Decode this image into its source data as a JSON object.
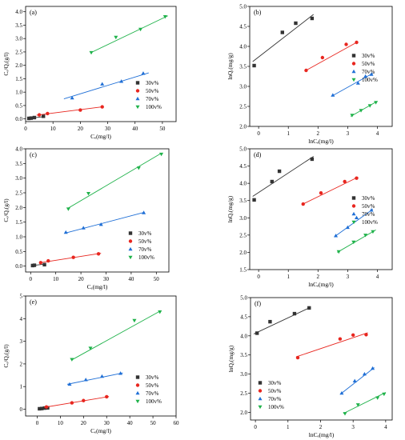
{
  "colors": {
    "s30": "#333333",
    "s50": "#e8261f",
    "s70": "#1f6fd6",
    "s100": "#1fb24a"
  },
  "legend_labels": [
    "30v%",
    "50v%",
    "70v%",
    "100v%"
  ],
  "chart_data": [
    {
      "panel": "(a)",
      "type": "scatter",
      "model": "Langmuir",
      "xlabel": "Cₑ(mg/l)",
      "ylabel": "Cₑ/Qₑ(g/l)",
      "xlim": [
        0,
        55
      ],
      "ylim": [
        -0.1,
        4.2
      ],
      "xticks": [
        0,
        10,
        20,
        30,
        40,
        50
      ],
      "yticks": [
        0.0,
        0.5,
        1.0,
        1.5,
        2.0,
        2.5,
        3.0,
        3.5,
        4.0
      ],
      "xtick_labels": [
        "0",
        "10",
        "20",
        "30",
        "40",
        "50"
      ],
      "ytick_labels": [
        "0.0",
        "0.5",
        "1.0",
        "1.5",
        "2.0",
        "2.5",
        "3.0",
        "3.5",
        "4.0"
      ],
      "legend_position": "bottom-right",
      "series": [
        {
          "name": "30v%",
          "marker": "square",
          "x": [
            1.2,
            2.0,
            3.2,
            6.5
          ],
          "y": [
            0.02,
            0.03,
            0.05,
            0.1
          ],
          "fit": [
            [
              1,
              0.02
            ],
            [
              7,
              0.09
            ]
          ]
        },
        {
          "name": "50v%",
          "marker": "circle",
          "x": [
            5,
            8,
            20,
            28
          ],
          "y": [
            0.15,
            0.2,
            0.33,
            0.45
          ],
          "fit": [
            [
              4,
              0.14
            ],
            [
              28,
              0.45
            ]
          ]
        },
        {
          "name": "70v%",
          "marker": "triangle-up",
          "x": [
            17,
            28,
            35,
            43
          ],
          "y": [
            0.78,
            1.3,
            1.4,
            1.7
          ],
          "fit": [
            [
              14,
              0.75
            ],
            [
              45,
              1.72
            ]
          ]
        },
        {
          "name": "100v%",
          "marker": "triangle-down",
          "x": [
            24,
            33,
            42,
            51
          ],
          "y": [
            2.48,
            3.05,
            3.35,
            3.82
          ],
          "fit": [
            [
              24,
              2.48
            ],
            [
              52,
              3.85
            ]
          ]
        }
      ]
    },
    {
      "panel": "(b)",
      "type": "scatter",
      "model": "Freundlich",
      "xlabel": "lnCₑ(mg/l)",
      "ylabel": "lnQₑ(mg/g)",
      "xlim": [
        -0.3,
        4.5
      ],
      "ylim": [
        2.0,
        5.0
      ],
      "xticks": [
        0,
        1,
        2,
        3,
        4
      ],
      "yticks": [
        2.0,
        2.5,
        3.0,
        3.5,
        4.0,
        4.5,
        5.0
      ],
      "xtick_labels": [
        "0",
        "1",
        "2",
        "3",
        "4"
      ],
      "ytick_labels": [
        "2.0",
        "2.5",
        "3.0",
        "3.5",
        "4.0",
        "4.5",
        "5.0"
      ],
      "legend_position": "right",
      "series": [
        {
          "name": "30v%",
          "marker": "square",
          "x": [
            -0.15,
            0.8,
            1.25,
            1.8
          ],
          "y": [
            3.52,
            4.35,
            4.58,
            4.7
          ],
          "fit": [
            [
              -0.2,
              3.62
            ],
            [
              1.85,
              4.8
            ]
          ]
        },
        {
          "name": "50v%",
          "marker": "circle",
          "x": [
            1.6,
            2.15,
            2.95,
            3.3
          ],
          "y": [
            3.4,
            3.72,
            4.05,
            4.1
          ],
          "fit": [
            [
              1.55,
              3.38
            ],
            [
              3.35,
              4.12
            ]
          ]
        },
        {
          "name": "70v%",
          "marker": "triangle-up",
          "x": [
            2.5,
            3.35,
            3.6,
            3.8
          ],
          "y": [
            2.78,
            3.08,
            3.25,
            3.3
          ],
          "fit": [
            [
              2.45,
              2.75
            ],
            [
              3.85,
              3.33
            ]
          ]
        },
        {
          "name": "100v%",
          "marker": "triangle-down",
          "x": [
            3.15,
            3.45,
            3.75,
            3.95
          ],
          "y": [
            2.28,
            2.4,
            2.52,
            2.6
          ],
          "fit": [
            [
              3.1,
              2.25
            ],
            [
              4.0,
              2.63
            ]
          ]
        }
      ]
    },
    {
      "panel": "(c)",
      "type": "scatter",
      "model": "Langmuir",
      "xlabel": "Cₑ(mg/l)",
      "ylabel": "Cₑ/Qₑ(g/l)",
      "xlim": [
        -2,
        55
      ],
      "ylim": [
        -0.2,
        4.0
      ],
      "xticks": [
        0,
        10,
        20,
        30,
        40,
        50
      ],
      "yticks": [
        0.0,
        0.5,
        1.0,
        1.5,
        2.0,
        2.5,
        3.0,
        3.5,
        4.0
      ],
      "xtick_labels": [
        "0",
        "10",
        "20",
        "30",
        "40",
        "50"
      ],
      "ytick_labels": [
        "0.0",
        "0.5",
        "1.0",
        "1.5",
        "2.0",
        "2.5",
        "3.0",
        "3.5",
        "4.0"
      ],
      "legend_position": "bottom-right",
      "series": [
        {
          "name": "30v%",
          "marker": "square",
          "x": [
            0.8,
            1.5,
            5.5
          ],
          "y": [
            0.02,
            0.03,
            0.05
          ],
          "fit": [
            [
              0.5,
              0.02
            ],
            [
              6,
              0.07
            ]
          ]
        },
        {
          "name": "50v%",
          "marker": "circle",
          "x": [
            4,
            7,
            17,
            27
          ],
          "y": [
            0.12,
            0.18,
            0.3,
            0.42
          ],
          "fit": [
            [
              4,
              0.12
            ],
            [
              28,
              0.44
            ]
          ]
        },
        {
          "name": "70v%",
          "marker": "triangle-up",
          "x": [
            14,
            21,
            28,
            45
          ],
          "y": [
            1.15,
            1.3,
            1.42,
            1.82
          ],
          "fit": [
            [
              14,
              1.13
            ],
            [
              45,
              1.83
            ]
          ]
        },
        {
          "name": "100v%",
          "marker": "triangle-down",
          "x": [
            15,
            23,
            43,
            52
          ],
          "y": [
            1.95,
            2.48,
            3.35,
            3.82
          ],
          "fit": [
            [
              15,
              1.98
            ],
            [
              52,
              3.85
            ]
          ]
        }
      ]
    },
    {
      "panel": "(d)",
      "type": "scatter",
      "model": "Freundlich",
      "xlabel": "lnCₑ(mg/l)",
      "ylabel": "lnQₑ(mg/g)",
      "xlim": [
        -0.3,
        4.5
      ],
      "ylim": [
        1.5,
        5.0
      ],
      "xticks": [
        0,
        1,
        2,
        3,
        4
      ],
      "yticks": [
        1.5,
        2.0,
        2.5,
        3.0,
        3.5,
        4.0,
        4.5,
        5.0
      ],
      "xtick_labels": [
        "0",
        "1",
        "2",
        "3",
        "4"
      ],
      "ytick_labels": [
        "1.5",
        "2.0",
        "2.5",
        "3.0",
        "3.5",
        "4.0",
        "4.5",
        "5.0"
      ],
      "legend_position": "right",
      "series": [
        {
          "name": "30v%",
          "marker": "square",
          "x": [
            -0.15,
            0.45,
            0.7,
            1.8
          ],
          "y": [
            3.52,
            4.05,
            4.35,
            4.7
          ],
          "fit": [
            [
              -0.2,
              3.62
            ],
            [
              1.85,
              4.78
            ]
          ]
        },
        {
          "name": "50v%",
          "marker": "circle",
          "x": [
            1.5,
            2.1,
            2.9,
            3.3
          ],
          "y": [
            3.4,
            3.72,
            4.05,
            4.15
          ],
          "fit": [
            [
              1.45,
              3.38
            ],
            [
              3.35,
              4.18
            ]
          ]
        },
        {
          "name": "70v%",
          "marker": "triangle-up",
          "x": [
            2.6,
            3.0,
            3.3,
            3.8
          ],
          "y": [
            2.48,
            2.72,
            3.0,
            3.22
          ],
          "fit": [
            [
              2.55,
              2.45
            ],
            [
              3.85,
              3.25
            ]
          ]
        },
        {
          "name": "100v%",
          "marker": "triangle-down",
          "x": [
            2.7,
            3.2,
            3.6,
            3.85
          ],
          "y": [
            2.02,
            2.3,
            2.5,
            2.6
          ],
          "fit": [
            [
              2.65,
              2.0
            ],
            [
              3.95,
              2.65
            ]
          ]
        }
      ]
    },
    {
      "panel": "(e)",
      "type": "scatter",
      "model": "Langmuir",
      "xlabel": "Cₑ(mg/l)",
      "ylabel": "Cₑ/Qₑ(g/l)",
      "xlim": [
        -5,
        60
      ],
      "ylim": [
        -0.3,
        5.0
      ],
      "xticks": [
        0,
        10,
        20,
        30,
        40,
        50,
        60
      ],
      "yticks": [
        0,
        1,
        2,
        3,
        4,
        5
      ],
      "xtick_labels": [
        "0",
        "10",
        "20",
        "30",
        "40",
        "50",
        "60"
      ],
      "ytick_labels": [
        "0",
        "1",
        "2",
        "3",
        "4",
        "5"
      ],
      "legend_position": "bottom-right",
      "series": [
        {
          "name": "30v%",
          "marker": "square",
          "x": [
            1,
            2,
            3.2,
            4.5
          ],
          "y": [
            0.02,
            0.03,
            0.05,
            0.06
          ],
          "fit": [
            [
              0.5,
              0.02
            ],
            [
              5,
              0.07
            ]
          ]
        },
        {
          "name": "50v%",
          "marker": "circle",
          "x": [
            4,
            15,
            20,
            30
          ],
          "y": [
            0.1,
            0.28,
            0.38,
            0.55
          ],
          "fit": [
            [
              3,
              0.08
            ],
            [
              31,
              0.56
            ]
          ]
        },
        {
          "name": "70v%",
          "marker": "triangle-up",
          "x": [
            14,
            21,
            28,
            36
          ],
          "y": [
            1.1,
            1.3,
            1.45,
            1.58
          ],
          "fit": [
            [
              13,
              1.1
            ],
            [
              37,
              1.6
            ]
          ]
        },
        {
          "name": "100v%",
          "marker": "triangle-down",
          "x": [
            15,
            23,
            42,
            53
          ],
          "y": [
            2.2,
            2.7,
            3.92,
            4.3
          ],
          "fit": [
            [
              15,
              2.18
            ],
            [
              53,
              4.33
            ]
          ]
        }
      ]
    },
    {
      "panel": "(f)",
      "type": "scatter",
      "model": "Freundlich",
      "xlabel": "lnCₑ(mg/l)",
      "ylabel": "lnQₑ(mg/g)",
      "xlim": [
        -0.15,
        4.2
      ],
      "ylim": [
        1.8,
        5.0
      ],
      "xticks": [
        0,
        1,
        2,
        3,
        4
      ],
      "yticks": [
        2.0,
        2.5,
        3.0,
        3.5,
        4.0,
        4.5,
        5.0
      ],
      "xtick_labels": [
        "0",
        "1",
        "2",
        "3",
        "4"
      ],
      "ytick_labels": [
        "2.0",
        "2.5",
        "3.0",
        "3.5",
        "4.0",
        "4.5",
        "5.0"
      ],
      "legend_position": "bottom-left",
      "series": [
        {
          "name": "30v%",
          "marker": "square",
          "x": [
            0.05,
            0.45,
            1.2,
            1.65
          ],
          "y": [
            4.07,
            4.37,
            4.58,
            4.73
          ],
          "fit": [
            [
              -0.05,
              4.05
            ],
            [
              1.7,
              4.75
            ]
          ]
        },
        {
          "name": "50v%",
          "marker": "circle",
          "x": [
            1.3,
            2.6,
            3.0,
            3.4
          ],
          "y": [
            3.43,
            3.92,
            4.02,
            4.03
          ],
          "fit": [
            [
              1.25,
              3.45
            ],
            [
              3.45,
              4.08
            ]
          ]
        },
        {
          "name": "70v%",
          "marker": "triangle-up",
          "x": [
            2.65,
            3.05,
            3.35,
            3.6
          ],
          "y": [
            2.5,
            2.82,
            3.0,
            3.15
          ],
          "fit": [
            [
              2.6,
              2.47
            ],
            [
              3.65,
              3.17
            ]
          ]
        },
        {
          "name": "100v%",
          "marker": "triangle-down",
          "x": [
            2.75,
            3.15,
            3.75,
            3.95
          ],
          "y": [
            1.97,
            2.2,
            2.38,
            2.48
          ],
          "fit": [
            [
              2.7,
              1.97
            ],
            [
              4.0,
              2.52
            ]
          ]
        }
      ]
    }
  ]
}
